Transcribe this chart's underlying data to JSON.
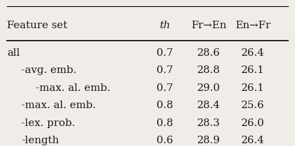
{
  "col_headers": [
    "Feature set",
    "th",
    "Fr→En",
    "En→Fr"
  ],
  "rows": [
    [
      "all",
      "0.7",
      "28.6",
      "26.4"
    ],
    [
      "-avg. emb.",
      "0.7",
      "28.8",
      "26.1"
    ],
    [
      "    -max. al. emb.",
      "0.7",
      "29.0",
      "26.1"
    ],
    [
      "-max. al. emb.",
      "0.8",
      "28.4",
      "25.6"
    ],
    [
      "-lex. prob.",
      "0.8",
      "28.3",
      "26.0"
    ],
    [
      "-length",
      "0.6",
      "28.9",
      "26.4"
    ]
  ],
  "figsize": [
    4.28,
    2.12
  ],
  "dpi": 100,
  "bg_color": "#f0ede8",
  "text_color": "#1a1a1a",
  "header_fontsize": 11,
  "row_fontsize": 11
}
